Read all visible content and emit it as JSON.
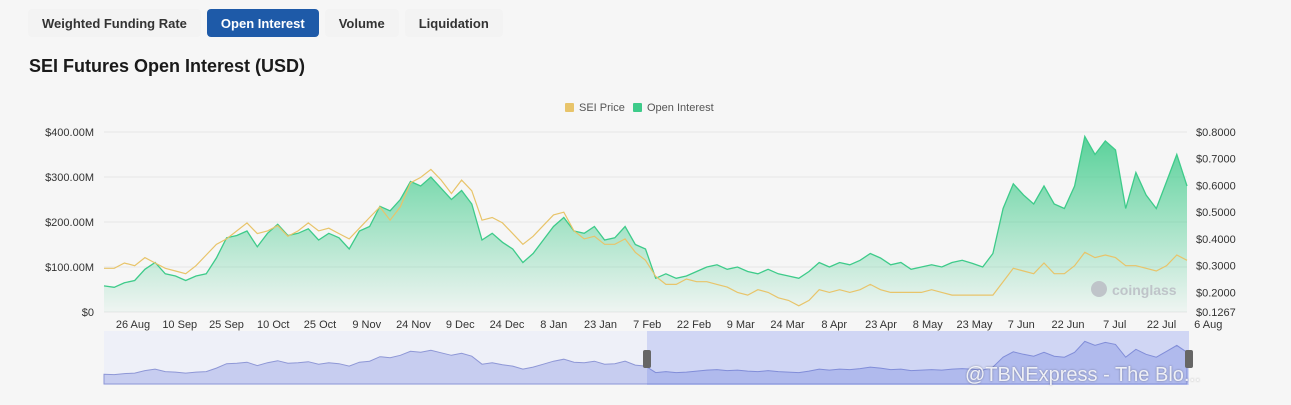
{
  "tabs": [
    "Weighted Funding Rate",
    "Open Interest",
    "Volume",
    "Liquidation"
  ],
  "active_tab": 1,
  "page_title": "SEI Futures Open Interest (USD)",
  "brand": "coinglass",
  "watermark": "@TBNExpress - The Blo...",
  "colors": {
    "price": "#e8c46a",
    "oi": "#3ecb8a",
    "accent": "#1e5aa8",
    "navigator": "#c7cdf0"
  },
  "chart_data": {
    "type": "area",
    "title": "SEI Futures Open Interest (USD)",
    "legend": [
      "SEI Price",
      "Open Interest"
    ],
    "legend_position": "top-center",
    "x_ticks": [
      "26 Aug",
      "10 Sep",
      "25 Sep",
      "10 Oct",
      "25 Oct",
      "9 Nov",
      "24 Nov",
      "9 Dec",
      "24 Dec",
      "8 Jan",
      "23 Jan",
      "7 Feb",
      "22 Feb",
      "9 Mar",
      "24 Mar",
      "8 Apr",
      "23 Apr",
      "8 May",
      "23 May",
      "7 Jun",
      "22 Jun",
      "7 Jul",
      "22 Jul",
      "6 Aug"
    ],
    "y_left": {
      "ticks": [
        "$400.00M",
        "$300.00M",
        "$200.00M",
        "$100.00M",
        "$0"
      ],
      "range": [
        0,
        400
      ]
    },
    "y_right": {
      "ticks": [
        "$0.8000",
        "$0.7000",
        "$0.6000",
        "$0.5000",
        "$0.4000",
        "$0.3000",
        "$0.2000",
        "$0.1267"
      ],
      "range": [
        0.1267,
        0.8
      ]
    },
    "series": [
      {
        "name": "Open Interest",
        "unit": "USD millions",
        "values": [
          58,
          55,
          65,
          70,
          95,
          110,
          85,
          80,
          70,
          80,
          85,
          120,
          165,
          170,
          180,
          145,
          175,
          195,
          170,
          175,
          185,
          160,
          175,
          165,
          140,
          180,
          190,
          235,
          225,
          250,
          290,
          280,
          300,
          275,
          250,
          270,
          240,
          160,
          175,
          155,
          140,
          110,
          130,
          160,
          190,
          210,
          180,
          175,
          190,
          160,
          165,
          190,
          150,
          140,
          75,
          85,
          75,
          80,
          90,
          100,
          105,
          95,
          100,
          90,
          85,
          95,
          85,
          80,
          75,
          90,
          110,
          100,
          110,
          105,
          115,
          130,
          120,
          105,
          110,
          95,
          100,
          105,
          100,
          110,
          115,
          108,
          100,
          130,
          230,
          285,
          260,
          240,
          280,
          240,
          230,
          280,
          390,
          350,
          380,
          360,
          230,
          310,
          260,
          230,
          290,
          350,
          280
        ]
      },
      {
        "name": "SEI Price",
        "unit": "USD",
        "values": [
          0.29,
          0.29,
          0.31,
          0.3,
          0.33,
          0.31,
          0.29,
          0.28,
          0.27,
          0.3,
          0.34,
          0.38,
          0.4,
          0.43,
          0.46,
          0.42,
          0.43,
          0.45,
          0.41,
          0.43,
          0.46,
          0.43,
          0.44,
          0.42,
          0.4,
          0.44,
          0.48,
          0.52,
          0.47,
          0.52,
          0.61,
          0.63,
          0.66,
          0.62,
          0.57,
          0.62,
          0.58,
          0.47,
          0.48,
          0.46,
          0.42,
          0.38,
          0.41,
          0.45,
          0.49,
          0.5,
          0.43,
          0.4,
          0.41,
          0.38,
          0.38,
          0.4,
          0.35,
          0.32,
          0.26,
          0.23,
          0.23,
          0.25,
          0.24,
          0.24,
          0.23,
          0.22,
          0.2,
          0.19,
          0.21,
          0.2,
          0.18,
          0.17,
          0.15,
          0.17,
          0.21,
          0.2,
          0.21,
          0.2,
          0.21,
          0.23,
          0.21,
          0.2,
          0.2,
          0.2,
          0.2,
          0.21,
          0.2,
          0.19,
          0.19,
          0.19,
          0.19,
          0.19,
          0.24,
          0.29,
          0.28,
          0.27,
          0.31,
          0.27,
          0.27,
          0.3,
          0.35,
          0.33,
          0.34,
          0.33,
          0.3,
          0.3,
          0.29,
          0.28,
          0.3,
          0.34,
          0.32
        ]
      }
    ],
    "grid": true,
    "navigator": {
      "selection_start": "22 Feb",
      "selection_end": "6 Aug"
    }
  }
}
